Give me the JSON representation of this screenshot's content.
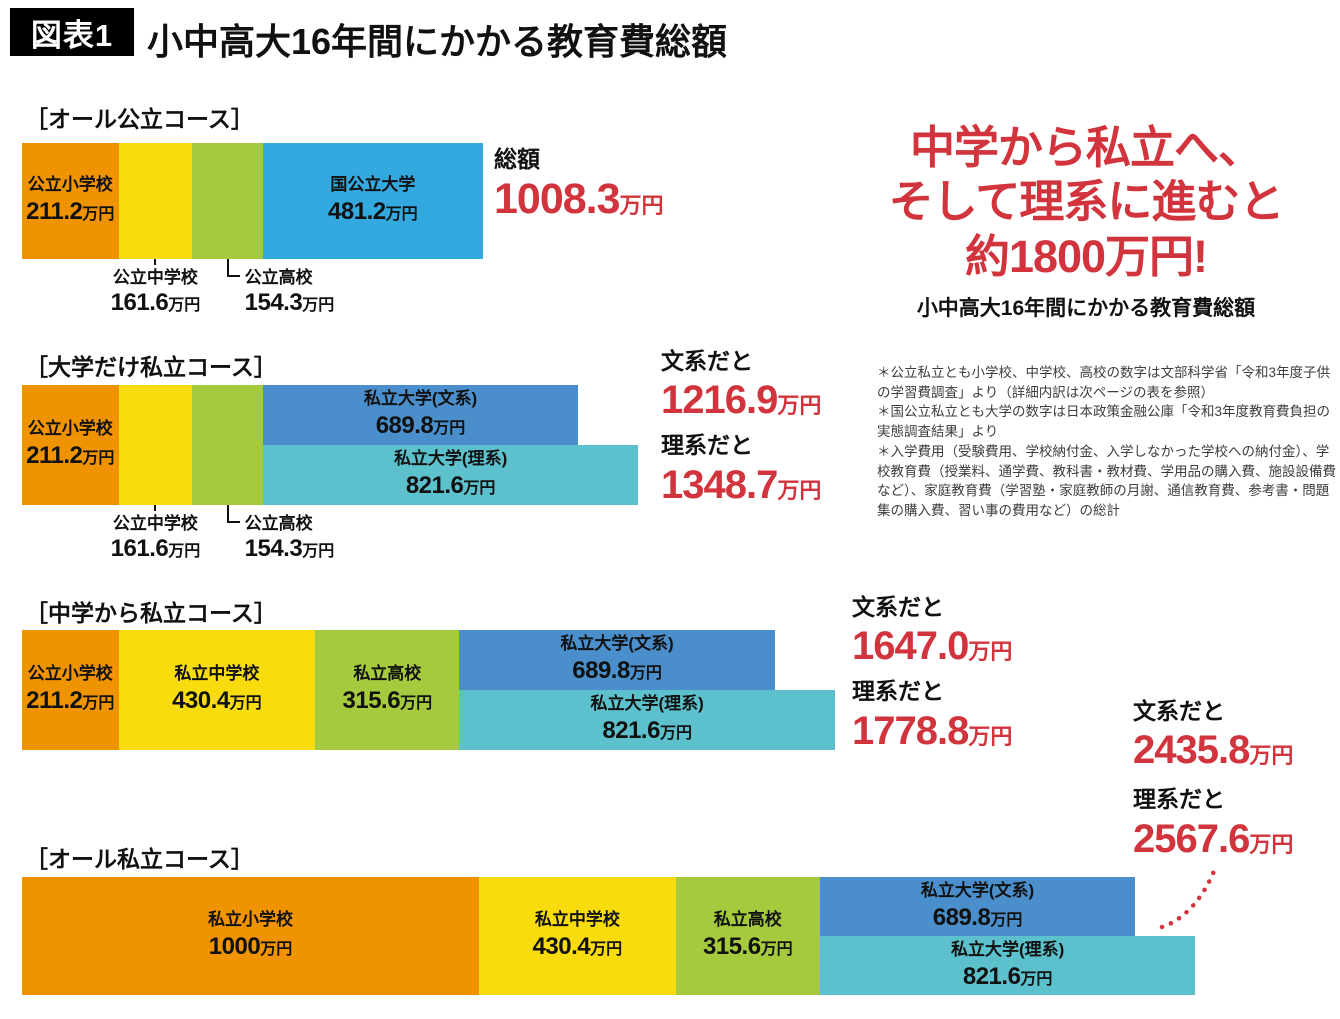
{
  "header": {
    "badge": "図表1",
    "title": "小中高大16年間にかかる教育費総額"
  },
  "headline": {
    "line1": "中学から私立へ、",
    "line2": "そして理系に進むと",
    "line3": "約1800万円!",
    "subtitle": "小中高大16年間にかかる教育費総額"
  },
  "footnotes": [
    "＊公立私立とも小学校、中学校、高校の数字は文部科学省「令和3年度子供の学習費調査」より（詳細内訳は次ページの表を参照）",
    "＊国公立私立とも大学の数字は日本政策金融公庫「令和3年度教育費負担の実態調査結果」より",
    "＊入学費用（受験費用、学校納付金、入学しなかった学校への納付金）、学校教育費（授業料、通学費、教科書・教材費、学用品の購入費、施設設備費など）、家庭教育費（学習塾・家庭教師の月謝、通信教育費、参考書・問題集の購入費、習い事の費用など）の総計"
  ],
  "colors": {
    "orange": "#EF9300",
    "yellow": "#F8DC0E",
    "green": "#A5CA3E",
    "blue": "#33A9DF",
    "steel": "#4A8FCB",
    "teal": "#5CC1CD",
    "red": "#D2343D",
    "ink": "#111111"
  },
  "chart_data": {
    "type": "bar",
    "unit": "万円",
    "title": "小中高大16年間にかかる教育費総額",
    "layout_hint": "horizontal stacked bars, shared scale across 4 courses, values in 万円",
    "courses": [
      {
        "label": "［オール公立コース］",
        "segments": [
          {
            "name": "公立小学校",
            "value": 211.2,
            "display": "211.2",
            "color": "orange",
            "label": "inside"
          },
          {
            "name": "公立中学校",
            "value": 161.6,
            "display": "161.6",
            "color": "yellow",
            "label": "below-stem"
          },
          {
            "name": "公立高校",
            "value": 154.3,
            "display": "154.3",
            "color": "green",
            "label": "below-elbow"
          },
          {
            "name": "国公立大学",
            "value": 481.2,
            "display": "481.2",
            "color": "blue",
            "label": "inside"
          }
        ],
        "university": [],
        "totals": [
          {
            "prefix": "総額",
            "value": 1008.3,
            "display": "1008.3"
          }
        ]
      },
      {
        "label": "［大学だけ私立コース］",
        "segments": [
          {
            "name": "公立小学校",
            "value": 211.2,
            "display": "211.2",
            "color": "orange",
            "label": "inside"
          },
          {
            "name": "公立中学校",
            "value": 161.6,
            "display": "161.6",
            "color": "yellow",
            "label": "below-stem"
          },
          {
            "name": "公立高校",
            "value": 154.3,
            "display": "154.3",
            "color": "green",
            "label": "below-elbow"
          }
        ],
        "university": [
          {
            "name": "私立大学(文系)",
            "value": 689.8,
            "display": "689.8",
            "color": "steel"
          },
          {
            "name": "私立大学(理系)",
            "value": 821.6,
            "display": "821.6",
            "color": "teal"
          }
        ],
        "totals": [
          {
            "prefix": "文系だと",
            "value": 1216.9,
            "display": "1216.9"
          },
          {
            "prefix": "理系だと",
            "value": 1348.7,
            "display": "1348.7"
          }
        ]
      },
      {
        "label": "［中学から私立コース］",
        "segments": [
          {
            "name": "公立小学校",
            "value": 211.2,
            "display": "211.2",
            "color": "orange",
            "label": "inside"
          },
          {
            "name": "私立中学校",
            "value": 430.4,
            "display": "430.4",
            "color": "yellow",
            "label": "inside"
          },
          {
            "name": "私立高校",
            "value": 315.6,
            "display": "315.6",
            "color": "green",
            "label": "inside"
          }
        ],
        "university": [
          {
            "name": "私立大学(文系)",
            "value": 689.8,
            "display": "689.8",
            "color": "steel"
          },
          {
            "name": "私立大学(理系)",
            "value": 821.6,
            "display": "821.6",
            "color": "teal"
          }
        ],
        "totals": [
          {
            "prefix": "文系だと",
            "value": 1647.0,
            "display": "1647.0"
          },
          {
            "prefix": "理系だと",
            "value": 1778.8,
            "display": "1778.8"
          }
        ]
      },
      {
        "label": "［オール私立コース］",
        "segments": [
          {
            "name": "私立小学校",
            "value": 1000,
            "display": "1000",
            "color": "orange",
            "label": "inside"
          },
          {
            "name": "私立中学校",
            "value": 430.4,
            "display": "430.4",
            "color": "yellow",
            "label": "inside"
          },
          {
            "name": "私立高校",
            "value": 315.6,
            "display": "315.6",
            "color": "green",
            "label": "inside"
          }
        ],
        "university": [
          {
            "name": "私立大学(文系)",
            "value": 689.8,
            "display": "689.8",
            "color": "steel"
          },
          {
            "name": "私立大学(理系)",
            "value": 821.6,
            "display": "821.6",
            "color": "teal"
          }
        ],
        "totals": [
          {
            "prefix": "文系だと",
            "value": 2435.8,
            "display": "2435.8"
          },
          {
            "prefix": "理系だと",
            "value": 2567.6,
            "display": "2567.6"
          }
        ]
      }
    ]
  }
}
